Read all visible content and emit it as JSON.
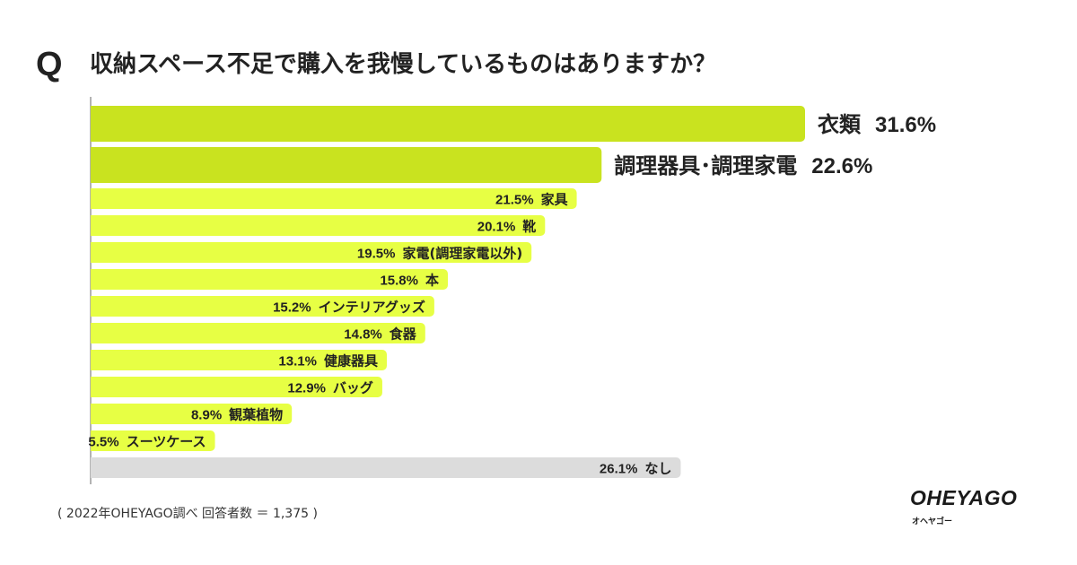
{
  "header": {
    "q_mark": "Q",
    "question": "収納スペース不足で購入を我慢しているものはありますか？"
  },
  "colors": {
    "top_bar": "#c9e31f",
    "bar": "#e7ff44",
    "none_bar": "#dcdcdc",
    "axis": "#9a9a9a",
    "text": "#222222"
  },
  "chart_data": {
    "type": "bar",
    "orientation": "horizontal",
    "title": "収納スペース不足で購入を我慢しているものはありますか？",
    "xlabel": "",
    "ylabel": "",
    "xlim": [
      0,
      31.6
    ],
    "items": [
      {
        "label": "衣類",
        "value": 31.6,
        "value_text": "31.6%",
        "style": "top"
      },
      {
        "label": "調理器具･調理家電",
        "value": 22.6,
        "value_text": "22.6%",
        "style": "top"
      },
      {
        "label": "家具",
        "value": 21.5,
        "value_text": "21.5%",
        "style": "normal"
      },
      {
        "label": "靴",
        "value": 20.1,
        "value_text": "20.1%",
        "style": "normal"
      },
      {
        "label": "家電(調理家電以外)",
        "value": 19.5,
        "value_text": "19.5%",
        "style": "normal"
      },
      {
        "label": "本",
        "value": 15.8,
        "value_text": "15.8%",
        "style": "normal"
      },
      {
        "label": "インテリアグッズ",
        "value": 15.2,
        "value_text": "15.2%",
        "style": "normal"
      },
      {
        "label": "食器",
        "value": 14.8,
        "value_text": "14.8%",
        "style": "normal"
      },
      {
        "label": "健康器具",
        "value": 13.1,
        "value_text": "13.1%",
        "style": "normal"
      },
      {
        "label": "バッグ",
        "value": 12.9,
        "value_text": "12.9%",
        "style": "normal"
      },
      {
        "label": "観葉植物",
        "value": 8.9,
        "value_text": "8.9%",
        "style": "normal"
      },
      {
        "label": "スーツケース",
        "value": 5.5,
        "value_text": "5.5%",
        "style": "normal"
      },
      {
        "label": "なし",
        "value": 26.1,
        "value_text": "26.1%",
        "style": "none"
      }
    ]
  },
  "footer": {
    "note": "( 2022年OHEYAGO調べ 回答者数 ＝ 1,375 )"
  },
  "logo": {
    "main": "OHEYAGO",
    "sub": "オヘヤゴー"
  }
}
